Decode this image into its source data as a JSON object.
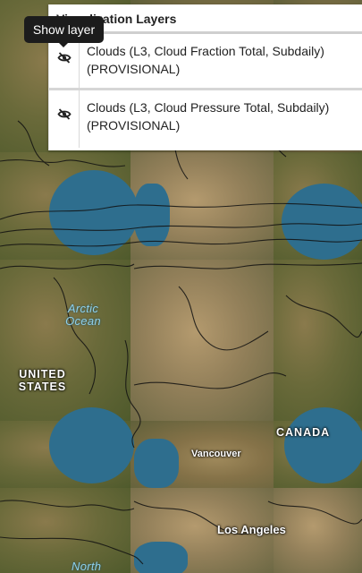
{
  "panel": {
    "title": "Visualization Layers",
    "layers": [
      {
        "name": "Clouds (L3, Cloud Fraction Total, Subdaily) (PROVISIONAL)",
        "visibility_icon": "eye-slash-icon",
        "visible": false
      },
      {
        "name": "Clouds (L3, Cloud Pressure Total, Subdaily) (PROVISIONAL)",
        "visibility_icon": "eye-slash-icon",
        "visible": false
      }
    ]
  },
  "tooltip": {
    "text": "Show layer"
  },
  "map": {
    "labels": {
      "arctic_ocean": "Arctic Ocean",
      "united_states": "UNITED STATES",
      "canada": "CANADA",
      "vancouver": "Vancouver",
      "los_angeles": "Los Angeles",
      "north": "North"
    }
  }
}
